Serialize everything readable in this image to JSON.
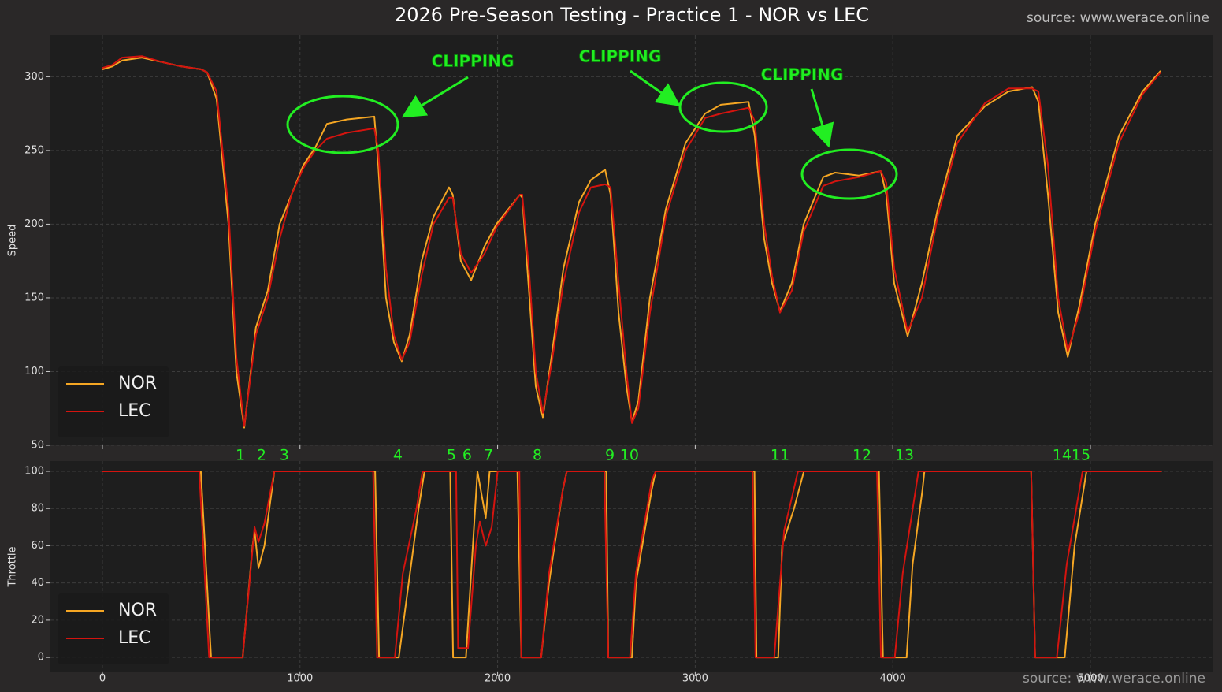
{
  "watermark": "source: www.werace.online",
  "chart_data": [
    {
      "type": "line",
      "title": "2026 Pre-Season Testing - Practice 1 - NOR vs LEC",
      "ylabel": "Speed",
      "annotations": [
        "CLIPPING",
        "CLIPPING",
        "CLIPPING"
      ],
      "corners": {
        "labels": [
          "1",
          "2",
          "3",
          "4",
          "5",
          "6",
          "7",
          "8",
          "9",
          "10",
          "11",
          "12",
          "13",
          "14",
          "15"
        ],
        "x": [
          698,
          805,
          921,
          1495,
          1766,
          1846,
          1954,
          2201,
          2568,
          2667,
          3429,
          3844,
          4059,
          4856,
          4952
        ]
      },
      "xlim": [
        -263,
        5622
      ],
      "ylim": [
        50,
        328
      ],
      "yticks": [
        50,
        100,
        150,
        200,
        250,
        300
      ],
      "xticks": [
        0,
        1000,
        2000,
        3000,
        4000,
        5000
      ],
      "grid": true,
      "legend": "lower left",
      "series": [
        {
          "name": "NOR",
          "color": "#f5a623",
          "x": [
            0,
            50,
            100,
            200,
            300,
            400,
            500,
            530,
            578,
            638,
            678,
            718,
            777,
            837,
            897,
            957,
            1017,
            1077,
            1136,
            1236,
            1376,
            1396,
            1435,
            1475,
            1515,
            1555,
            1615,
            1675,
            1754,
            1773,
            1814,
            1866,
            1934,
            1994,
            2113,
            2125,
            2161,
            2193,
            2229,
            2273,
            2333,
            2412,
            2472,
            2544,
            2572,
            2612,
            2652,
            2680,
            2712,
            2771,
            2851,
            2951,
            3050,
            3130,
            3270,
            3301,
            3349,
            3389,
            3429,
            3489,
            3549,
            3648,
            3708,
            3828,
            3939,
            3967,
            4007,
            4075,
            4147,
            4227,
            4326,
            4466,
            4585,
            4705,
            4737,
            4785,
            4837,
            4885,
            4944,
            5024,
            5144,
            5263,
            5355
          ],
          "values": [
            305,
            307,
            311,
            313,
            310,
            307,
            305,
            303,
            285,
            200,
            100,
            62,
            130,
            155,
            200,
            220,
            240,
            252,
            268,
            271,
            273,
            240,
            150,
            120,
            107,
            125,
            175,
            205,
            225,
            220,
            175,
            162,
            185,
            200,
            220,
            218,
            150,
            90,
            69,
            110,
            170,
            215,
            230,
            237,
            220,
            140,
            90,
            66,
            80,
            150,
            210,
            255,
            275,
            281,
            283,
            260,
            190,
            160,
            141,
            160,
            200,
            232,
            235,
            233,
            236,
            220,
            160,
            124,
            160,
            210,
            260,
            280,
            290,
            293,
            283,
            220,
            140,
            110,
            145,
            200,
            260,
            290,
            304
          ]
        },
        {
          "name": "LEC",
          "color": "#d4140f",
          "x": [
            0,
            50,
            100,
            200,
            300,
            400,
            500,
            530,
            578,
            638,
            678,
            718,
            777,
            837,
            897,
            957,
            1017,
            1077,
            1136,
            1236,
            1376,
            1396,
            1435,
            1475,
            1515,
            1555,
            1615,
            1675,
            1754,
            1773,
            1814,
            1866,
            1934,
            1994,
            2113,
            2125,
            2161,
            2193,
            2229,
            2273,
            2333,
            2412,
            2472,
            2544,
            2572,
            2612,
            2652,
            2680,
            2712,
            2771,
            2851,
            2951,
            3050,
            3130,
            3270,
            3301,
            3349,
            3389,
            3429,
            3489,
            3549,
            3648,
            3708,
            3828,
            3939,
            3967,
            4007,
            4075,
            4147,
            4227,
            4326,
            4466,
            4585,
            4705,
            4737,
            4785,
            4837,
            4885,
            4944,
            5024,
            5144,
            5263,
            5355
          ],
          "values": [
            306,
            308,
            313,
            314,
            310,
            307,
            305,
            303,
            290,
            210,
            110,
            63,
            125,
            150,
            190,
            220,
            238,
            250,
            258,
            262,
            265,
            250,
            170,
            125,
            108,
            120,
            165,
            200,
            218,
            218,
            180,
            167,
            180,
            198,
            220,
            220,
            165,
            100,
            72,
            105,
            160,
            208,
            225,
            227,
            225,
            160,
            100,
            65,
            75,
            140,
            205,
            250,
            272,
            275,
            279,
            270,
            200,
            165,
            140,
            155,
            195,
            226,
            229,
            232,
            236,
            228,
            170,
            127,
            150,
            205,
            255,
            282,
            292,
            292,
            290,
            240,
            150,
            114,
            140,
            195,
            255,
            288,
            303
          ]
        }
      ]
    },
    {
      "type": "line",
      "ylabel": "Throttle",
      "xlim": [
        -263,
        5622
      ],
      "ylim": [
        -8,
        105.5
      ],
      "yticks": [
        0,
        20,
        40,
        60,
        80,
        100
      ],
      "xticks": [
        0,
        1000,
        2000,
        3000,
        4000,
        5000
      ],
      "grid": true,
      "legend": "lower left",
      "series": [
        {
          "name": "NOR",
          "color": "#f5a623",
          "x": [
            0,
            498,
            550,
            710,
            760,
            770,
            790,
            820,
            870,
            1380,
            1400,
            1500,
            1550,
            1600,
            1630,
            1760,
            1775,
            1840,
            1898,
            1940,
            1960,
            2100,
            2120,
            2220,
            2260,
            2330,
            2350,
            2550,
            2560,
            2680,
            2700,
            2780,
            2800,
            3300,
            3310,
            3420,
            3440,
            3500,
            3550,
            3930,
            3950,
            4070,
            4100,
            4150,
            4160,
            4700,
            4720,
            4870,
            4920,
            4980,
            5360
          ],
          "values": [
            100,
            100,
            0,
            0,
            60,
            68,
            48,
            60,
            100,
            100,
            0,
            0,
            40,
            80,
            100,
            100,
            0,
            0,
            100,
            75,
            100,
            100,
            0,
            0,
            40,
            90,
            100,
            100,
            0,
            0,
            40,
            90,
            100,
            100,
            0,
            0,
            60,
            80,
            100,
            100,
            0,
            0,
            50,
            90,
            100,
            100,
            0,
            0,
            60,
            100,
            100
          ]
        },
        {
          "name": "LEC",
          "color": "#d4140f",
          "x": [
            0,
            490,
            540,
            710,
            770,
            790,
            820,
            870,
            1370,
            1390,
            1480,
            1520,
            1590,
            1620,
            1790,
            1800,
            1850,
            1890,
            1910,
            1940,
            1970,
            2000,
            2110,
            2120,
            2220,
            2260,
            2330,
            2350,
            2540,
            2560,
            2670,
            2700,
            2780,
            2800,
            3290,
            3305,
            3400,
            3450,
            3520,
            3920,
            3940,
            4010,
            4050,
            4130,
            4700,
            4720,
            4830,
            4880,
            4960,
            5360
          ],
          "values": [
            100,
            100,
            0,
            0,
            70,
            62,
            72,
            100,
            100,
            0,
            0,
            45,
            80,
            100,
            100,
            5,
            5,
            60,
            73,
            60,
            70,
            100,
            100,
            0,
            0,
            45,
            90,
            100,
            100,
            0,
            0,
            45,
            95,
            100,
            100,
            0,
            0,
            68,
            100,
            100,
            0,
            0,
            45,
            100,
            100,
            0,
            0,
            50,
            100,
            100
          ]
        }
      ]
    }
  ]
}
